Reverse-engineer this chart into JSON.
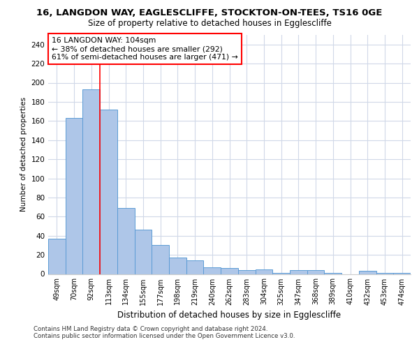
{
  "title_line1": "16, LANGDON WAY, EAGLESCLIFFE, STOCKTON-ON-TEES, TS16 0GE",
  "title_line2": "Size of property relative to detached houses in Egglescliffe",
  "xlabel": "Distribution of detached houses by size in Egglescliffe",
  "ylabel": "Number of detached properties",
  "categories": [
    "49sqm",
    "70sqm",
    "92sqm",
    "113sqm",
    "134sqm",
    "155sqm",
    "177sqm",
    "198sqm",
    "219sqm",
    "240sqm",
    "262sqm",
    "283sqm",
    "304sqm",
    "325sqm",
    "347sqm",
    "368sqm",
    "389sqm",
    "410sqm",
    "432sqm",
    "453sqm",
    "474sqm"
  ],
  "values": [
    37,
    163,
    193,
    172,
    69,
    46,
    30,
    17,
    14,
    7,
    6,
    4,
    5,
    1,
    4,
    4,
    1,
    0,
    3,
    1,
    1
  ],
  "bar_color": "#aec6e8",
  "bar_edge_color": "#5b9bd5",
  "annotation_text": "16 LANGDON WAY: 104sqm\n← 38% of detached houses are smaller (292)\n61% of semi-detached houses are larger (471) →",
  "annotation_box_color": "white",
  "annotation_box_edge_color": "red",
  "grid_color": "#d0d8e8",
  "background_color": "white",
  "ylim": [
    0,
    250
  ],
  "yticks": [
    0,
    20,
    40,
    60,
    80,
    100,
    120,
    140,
    160,
    180,
    200,
    220,
    240
  ],
  "footer_line1": "Contains HM Land Registry data © Crown copyright and database right 2024.",
  "footer_line2": "Contains public sector information licensed under the Open Government Licence v3.0.",
  "property_index": 2,
  "vline_x": 2.5
}
